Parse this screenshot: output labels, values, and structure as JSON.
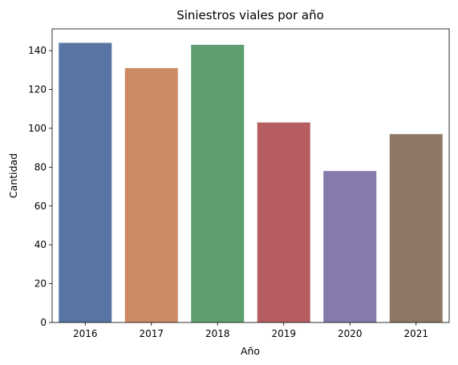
{
  "chart_data": {
    "type": "bar",
    "title": "Siniestros viales por año",
    "xlabel": "Año",
    "ylabel": "Cantidad",
    "categories": [
      "2016",
      "2017",
      "2018",
      "2019",
      "2020",
      "2021"
    ],
    "values": [
      144,
      131,
      143,
      103,
      78,
      97
    ],
    "colors": [
      "#5875a4",
      "#cc8963",
      "#5f9e6e",
      "#b55d60",
      "#857aab",
      "#8d7866"
    ],
    "ylim": [
      0,
      151.2
    ],
    "yticks": [
      0,
      20,
      40,
      60,
      80,
      100,
      120,
      140
    ],
    "grid": false,
    "legend": "none"
  }
}
